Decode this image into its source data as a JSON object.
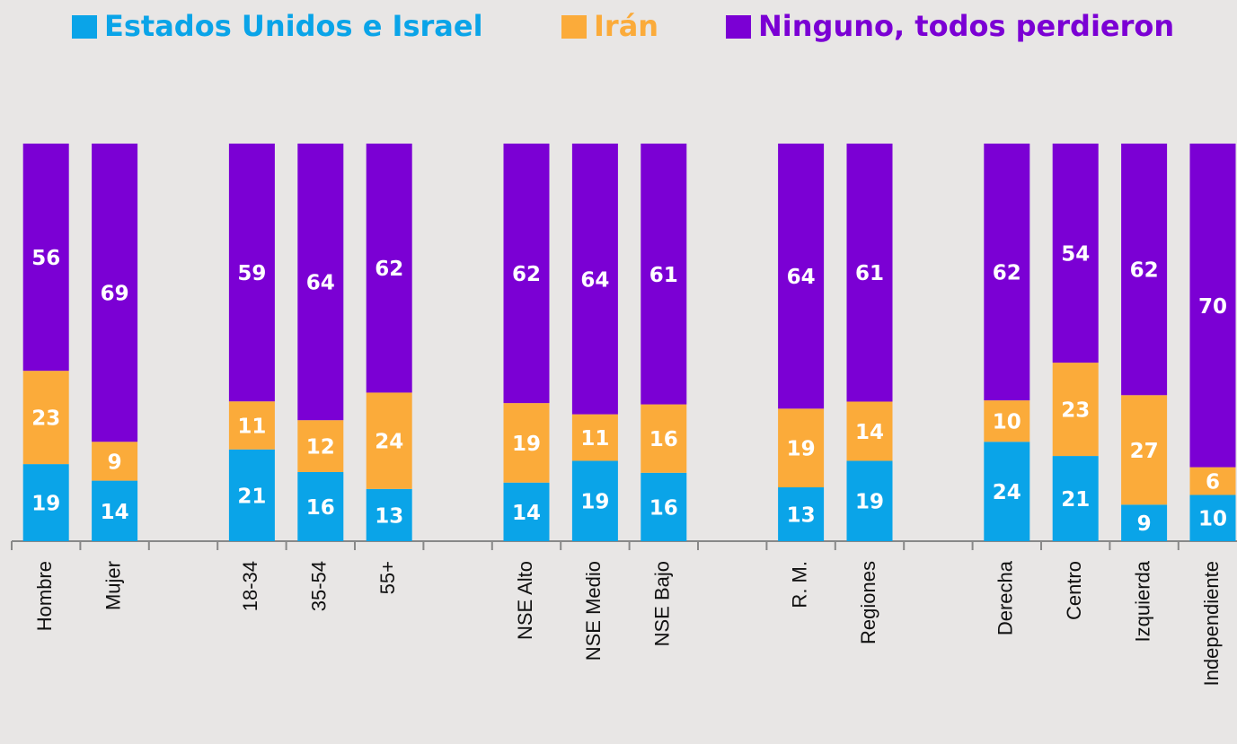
{
  "chart_data": {
    "type": "stacked_bar",
    "stack": "percent",
    "categories": [
      "Hombre",
      "Mujer",
      null,
      "18-34",
      "35-54",
      "55+",
      null,
      "NSE Alto",
      "NSE Medio",
      "NSE Bajo",
      null,
      "R. M.",
      "Regiones",
      null,
      "Derecha",
      "Centro",
      "Izquierda",
      "Independiente"
    ],
    "series": [
      {
        "name": "Estados Unidos e Israel",
        "color": "#0aa4e8",
        "values": [
          19,
          14,
          null,
          21,
          16,
          13,
          null,
          14,
          19,
          16,
          null,
          13,
          19,
          null,
          24,
          21,
          9,
          10
        ]
      },
      {
        "name": "Irán",
        "color": "#fbab3a",
        "values": [
          23,
          9,
          null,
          11,
          12,
          24,
          null,
          19,
          11,
          16,
          null,
          19,
          14,
          null,
          10,
          23,
          27,
          6
        ]
      },
      {
        "name": "Ninguno, todos perdieron",
        "color": "#7b00d4",
        "values": [
          56,
          69,
          null,
          59,
          64,
          62,
          null,
          62,
          64,
          61,
          null,
          64,
          61,
          null,
          62,
          54,
          62,
          70
        ]
      }
    ]
  }
}
